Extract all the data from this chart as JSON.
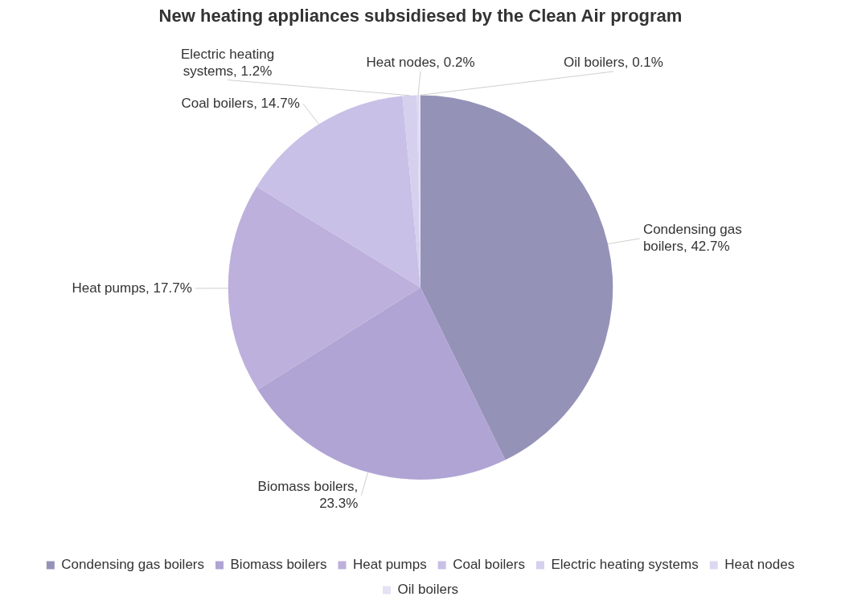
{
  "chart_data": {
    "type": "pie",
    "title": "New heating appliances subsidiesed by the Clean Air program",
    "categories": [
      "Condensing gas boilers",
      "Biomass boilers",
      "Heat pumps",
      "Coal boilers",
      "Electric heating systems",
      "Heat nodes",
      "Oil boilers"
    ],
    "values": [
      42.7,
      23.3,
      17.7,
      14.7,
      1.2,
      0.2,
      0.1
    ],
    "colors": [
      "#9592b8",
      "#b0a4d4",
      "#bdb0dc",
      "#c8c0e6",
      "#d4d0ee",
      "#dcd8f2",
      "#e4e2f4"
    ],
    "value_labels": [
      "Condensing gas boilers, 42.7%",
      "Biomass boilers, 23.3%",
      "Heat pumps, 17.7%",
      "Coal boilers, 14.7%",
      "Electric heating systems, 1.2%",
      "Heat nodes, 0.2%",
      "Oil boilers, 0.1%"
    ],
    "legend": "bottom"
  }
}
